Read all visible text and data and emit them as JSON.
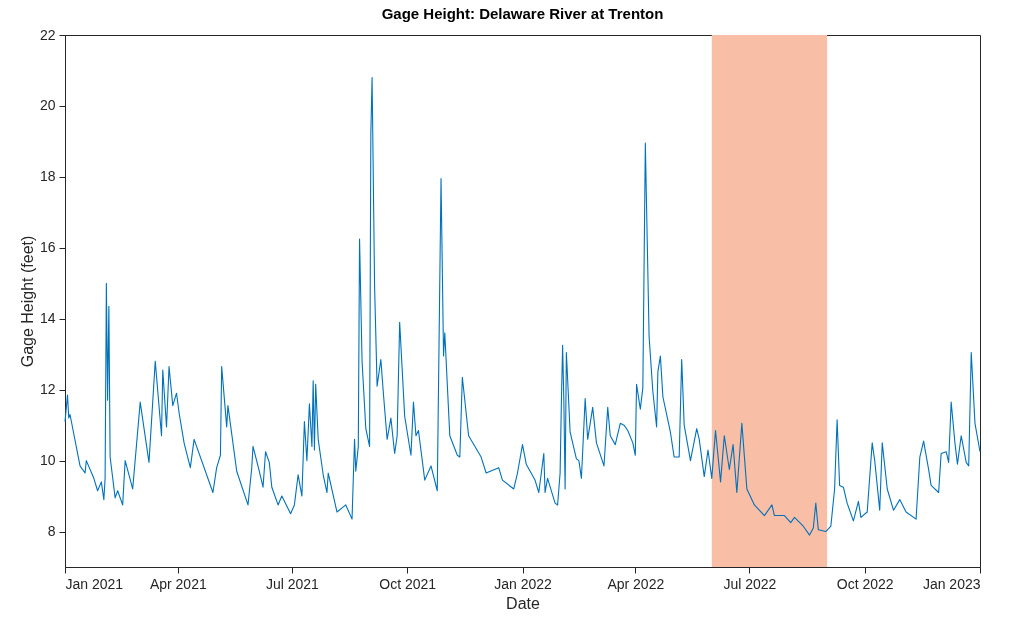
{
  "chart_data": {
    "type": "line",
    "title": "Gage Height: Delaware River at Trenton",
    "xlabel": "Date",
    "ylabel": "Gage Height (feet)",
    "x": [
      "2021-01-01",
      "2021-01-03",
      "2021-01-04",
      "2021-01-05",
      "2021-01-13",
      "2021-01-17",
      "2021-01-18",
      "2021-01-24",
      "2021-01-27",
      "2021-01-30",
      "2021-02-01",
      "2021-02-02",
      "2021-02-03",
      "2021-02-04",
      "2021-02-05",
      "2021-02-06",
      "2021-02-10",
      "2021-02-12",
      "2021-02-16",
      "2021-02-18",
      "2021-02-24",
      "2021-03-02",
      "2021-03-09",
      "2021-03-14",
      "2021-03-19",
      "2021-03-20",
      "2021-03-23",
      "2021-03-25",
      "2021-03-28",
      "2021-03-31",
      "2021-04-02",
      "2021-04-06",
      "2021-04-11",
      "2021-04-14",
      "2021-04-29",
      "2021-05-02",
      "2021-05-05",
      "2021-05-06",
      "2021-05-10",
      "2021-05-11",
      "2021-05-18",
      "2021-05-27",
      "2021-05-30",
      "2021-05-31",
      "2021-06-05",
      "2021-06-08",
      "2021-06-10",
      "2021-06-13",
      "2021-06-15",
      "2021-06-20",
      "2021-06-23",
      "2021-06-30",
      "2021-07-03",
      "2021-07-06",
      "2021-07-09",
      "2021-07-11",
      "2021-07-13",
      "2021-07-15",
      "2021-07-17",
      "2021-07-18",
      "2021-07-19",
      "2021-07-20",
      "2021-07-22",
      "2021-07-26",
      "2021-07-29",
      "2021-07-30",
      "2021-08-06",
      "2021-08-13",
      "2021-08-18",
      "2021-08-20",
      "2021-08-21",
      "2021-08-23",
      "2021-08-24",
      "2021-08-26",
      "2021-08-29",
      "2021-09-01",
      "2021-09-02",
      "2021-09-03",
      "2021-09-05",
      "2021-09-07",
      "2021-09-10",
      "2021-09-12",
      "2021-09-15",
      "2021-09-18",
      "2021-09-21",
      "2021-09-23",
      "2021-09-25",
      "2021-09-29",
      "2021-10-04",
      "2021-10-06",
      "2021-10-08",
      "2021-10-10",
      "2021-10-15",
      "2021-10-20",
      "2021-10-25",
      "2021-10-28",
      "2021-10-30",
      "2021-10-31",
      "2021-11-04",
      "2021-11-10",
      "2021-11-12",
      "2021-11-14",
      "2021-11-19",
      "2021-11-29",
      "2021-12-03",
      "2021-12-13",
      "2021-12-16",
      "2021-12-25",
      "2021-12-28",
      "2022-01-01",
      "2022-01-04",
      "2022-01-11",
      "2022-01-14",
      "2022-01-18",
      "2022-01-19",
      "2022-01-21",
      "2022-01-27",
      "2022-01-29",
      "2022-01-31",
      "2022-02-01",
      "2022-02-02",
      "2022-02-03",
      "2022-02-04",
      "2022-02-05",
      "2022-02-08",
      "2022-02-13",
      "2022-02-15",
      "2022-02-17",
      "2022-02-20",
      "2022-02-22",
      "2022-02-26",
      "2022-03-01",
      "2022-03-07",
      "2022-03-10",
      "2022-03-12",
      "2022-03-16",
      "2022-03-20",
      "2022-03-23",
      "2022-03-26",
      "2022-03-30",
      "2022-04-01",
      "2022-04-02",
      "2022-04-05",
      "2022-04-07",
      "2022-04-09",
      "2022-04-12",
      "2022-04-15",
      "2022-04-18",
      "2022-04-19",
      "2022-04-21",
      "2022-04-23",
      "2022-04-29",
      "2022-05-02",
      "2022-05-06",
      "2022-05-08",
      "2022-05-10",
      "2022-05-15",
      "2022-05-20",
      "2022-05-22",
      "2022-05-26",
      "2022-05-29",
      "2022-06-01",
      "2022-06-04",
      "2022-06-08",
      "2022-06-11",
      "2022-06-15",
      "2022-06-18",
      "2022-06-21",
      "2022-06-25",
      "2022-06-29",
      "2022-07-05",
      "2022-07-13",
      "2022-07-19",
      "2022-07-21",
      "2022-07-29",
      "2022-08-03",
      "2022-08-06",
      "2022-08-13",
      "2022-08-18",
      "2022-08-21",
      "2022-08-23",
      "2022-08-25",
      "2022-08-31",
      "2022-09-04",
      "2022-09-07",
      "2022-09-09",
      "2022-09-11",
      "2022-09-14",
      "2022-09-17",
      "2022-09-22",
      "2022-09-26",
      "2022-09-28",
      "2022-10-03",
      "2022-10-07",
      "2022-10-09",
      "2022-10-13",
      "2022-10-15",
      "2022-10-19",
      "2022-10-24",
      "2022-10-29",
      "2022-11-03",
      "2022-11-11",
      "2022-11-14",
      "2022-11-17",
      "2022-11-21",
      "2022-11-23",
      "2022-11-29",
      "2022-12-01",
      "2022-12-05",
      "2022-12-07",
      "2022-12-09",
      "2022-12-12",
      "2022-12-14",
      "2022-12-17",
      "2022-12-21",
      "2022-12-23",
      "2022-12-25",
      "2022-12-28",
      "2023-01-01"
    ],
    "series": [
      {
        "color": "#0072bd",
        "values": [
          11.1,
          11.85,
          11.2,
          11.3,
          9.85,
          9.65,
          10.0,
          9.5,
          9.15,
          9.4,
          8.9,
          9.5,
          15.0,
          11.7,
          14.35,
          10.1,
          8.95,
          9.15,
          8.75,
          10.0,
          9.2,
          11.65,
          9.95,
          12.8,
          10.7,
          12.55,
          10.95,
          12.65,
          11.55,
          11.9,
          11.35,
          10.5,
          9.8,
          10.6,
          9.1,
          9.8,
          10.15,
          12.65,
          10.95,
          11.55,
          9.7,
          8.75,
          9.8,
          10.4,
          9.7,
          9.25,
          10.25,
          9.95,
          9.25,
          8.75,
          9.0,
          8.5,
          8.75,
          9.6,
          9.0,
          11.1,
          10.0,
          11.6,
          10.4,
          12.25,
          10.3,
          12.15,
          10.6,
          9.6,
          9.1,
          9.65,
          8.55,
          8.75,
          8.35,
          10.6,
          9.7,
          10.4,
          16.25,
          12.8,
          10.9,
          10.4,
          19.2,
          20.8,
          14.9,
          12.1,
          12.85,
          11.9,
          10.6,
          11.2,
          10.2,
          10.7,
          13.9,
          11.25,
          10.15,
          11.65,
          10.7,
          10.85,
          9.45,
          9.85,
          9.15,
          17.95,
          12.95,
          13.6,
          10.7,
          10.15,
          10.1,
          12.35,
          10.7,
          10.1,
          9.65,
          9.8,
          9.45,
          9.2,
          9.65,
          10.45,
          9.9,
          9.45,
          9.1,
          10.2,
          9.1,
          9.5,
          8.8,
          8.75,
          9.65,
          11.6,
          13.25,
          11.65,
          9.2,
          13.05,
          10.8,
          10.05,
          10.0,
          9.5,
          11.75,
          10.6,
          11.5,
          10.5,
          9.85,
          11.5,
          10.7,
          10.45,
          11.05,
          11.0,
          10.85,
          10.5,
          10.15,
          12.15,
          11.45,
          12.05,
          18.95,
          13.5,
          11.95,
          10.95,
          12.5,
          12.95,
          11.8,
          10.8,
          10.1,
          10.1,
          12.85,
          11.0,
          10.0,
          10.9,
          10.6,
          9.55,
          10.3,
          9.5,
          10.85,
          9.4,
          10.7,
          9.75,
          10.45,
          9.1,
          11.05,
          9.2,
          8.75,
          8.45,
          8.75,
          8.45,
          8.45,
          8.25,
          8.4,
          8.15,
          7.9,
          8.1,
          8.8,
          8.05,
          8.0,
          8.15,
          9.2,
          11.15,
          9.3,
          9.25,
          8.8,
          8.3,
          8.85,
          8.4,
          8.55,
          10.5,
          10.0,
          8.6,
          10.5,
          9.2,
          8.6,
          8.9,
          8.55,
          8.35,
          10.1,
          10.55,
          9.75,
          9.3,
          9.1,
          10.2,
          10.25,
          9.95,
          11.65,
          10.5,
          9.9,
          10.7,
          9.95,
          9.85,
          13.05,
          11.05,
          10.25
        ]
      }
    ],
    "xlim": [
      "2021-01-01",
      "2023-01-01"
    ],
    "xticks": [
      {
        "value": "2021-01-01",
        "label": "Jan 2021"
      },
      {
        "value": "2021-04-01",
        "label": "Apr 2021"
      },
      {
        "value": "2021-07-01",
        "label": "Jul 2021"
      },
      {
        "value": "2021-10-01",
        "label": "Oct 2021"
      },
      {
        "value": "2022-01-01",
        "label": "Jan 2022"
      },
      {
        "value": "2022-04-01",
        "label": "Apr 2022"
      },
      {
        "value": "2022-07-01",
        "label": "Jul 2022"
      },
      {
        "value": "2022-10-01",
        "label": "Oct 2022"
      },
      {
        "value": "2023-01-01",
        "label": "Jan 2023"
      }
    ],
    "ylim": [
      7,
      22
    ],
    "yticks": [
      8,
      10,
      12,
      14,
      16,
      18,
      20,
      22
    ],
    "bands": [
      {
        "axis": "x",
        "from": "2022-06-01",
        "to": "2022-09-01",
        "color": "#f8bea6"
      }
    ],
    "line_style": "solid"
  }
}
